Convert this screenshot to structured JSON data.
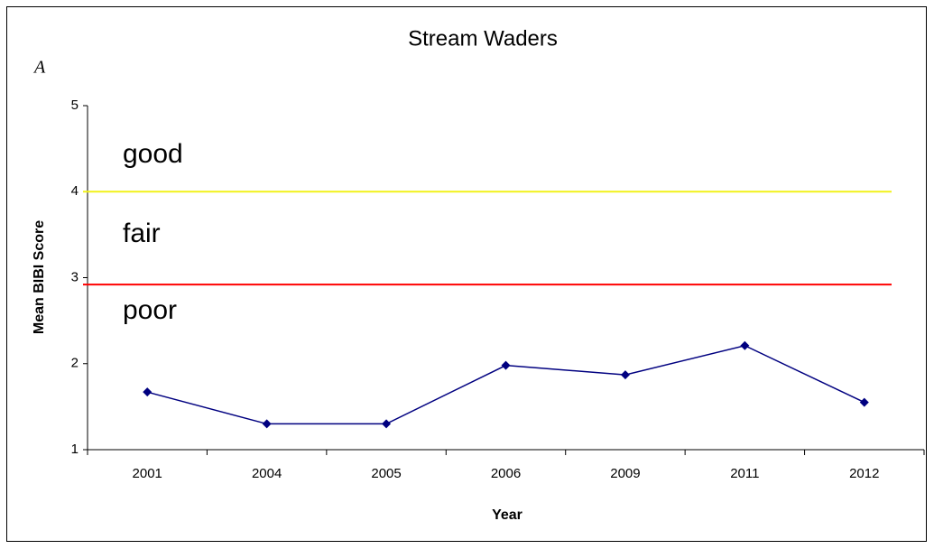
{
  "chart_data": {
    "type": "line",
    "title": "Stream Waders",
    "panel_label": "A",
    "x_label": "Year",
    "y_label": "Mean BIBI Score",
    "categories": [
      "2001",
      "2004",
      "2005",
      "2006",
      "2009",
      "2011",
      "2012"
    ],
    "series": [
      {
        "name": "Mean BIBI Score",
        "color": "#000080",
        "values": [
          1.67,
          1.3,
          1.3,
          1.98,
          1.87,
          2.21,
          1.55
        ]
      }
    ],
    "ylim": [
      1,
      5
    ],
    "yticks": [
      1,
      2,
      3,
      4,
      5
    ],
    "grid": false,
    "legend": false,
    "reference_lines": [
      {
        "value": 4,
        "color": "#f2f21a"
      },
      {
        "value": 2.92,
        "color": "#ff0000"
      }
    ],
    "zone_labels": [
      "good",
      "fair",
      "poor"
    ]
  }
}
